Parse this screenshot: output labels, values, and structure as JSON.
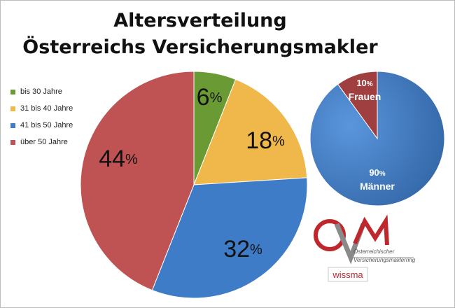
{
  "title": {
    "line1": "Altersverteilung",
    "line2": "Österreichs Versicherungsmakler"
  },
  "chart_data": [
    {
      "type": "pie",
      "title": "Altersverteilung Österreichs Versicherungsmakler",
      "categories": [
        "bis 30 Jahre",
        "31 bis 40 Jahre",
        "41 bis 50 Jahre",
        "über 50 Jahre"
      ],
      "values": [
        6,
        18,
        32,
        44
      ],
      "labels": [
        "6",
        "18",
        "32",
        "44"
      ],
      "unit": "%",
      "colors": [
        "#6a9a33",
        "#f0b84a",
        "#3e7cc8",
        "#bf5252"
      ],
      "legend": "left"
    },
    {
      "type": "pie",
      "categories": [
        "Frauen",
        "Männer"
      ],
      "values": [
        10,
        90
      ],
      "labels": [
        "10",
        "90"
      ],
      "unit": "%",
      "colors": [
        "#a03f3f",
        "#3a76c2"
      ]
    }
  ],
  "logo": {
    "line1": "Österreichischer",
    "line2": "Versicherungsmaklerring",
    "brand": "wissma",
    "colors": {
      "red": "#c0272d",
      "gray": "#8a8a8a"
    }
  }
}
